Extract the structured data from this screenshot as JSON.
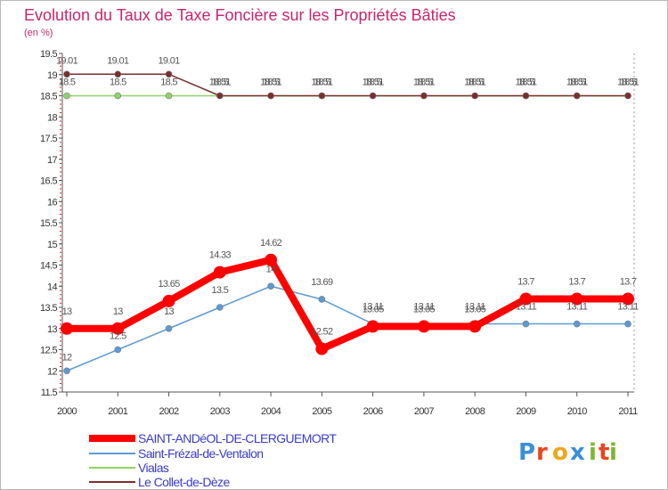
{
  "chart_data": {
    "type": "line",
    "title": "Evolution du Taux de Taxe Foncière sur les Propriétés Bâties",
    "subtitle": "(en %)",
    "xlabel": "",
    "ylabel": "(en %)",
    "categories": [
      "2000",
      "2001",
      "2002",
      "2003",
      "2004",
      "2005",
      "2006",
      "2007",
      "2008",
      "2009",
      "2010",
      "2011"
    ],
    "ylim": [
      11.5,
      19.5
    ],
    "yticks": [
      "11.5",
      "12",
      "12.5",
      "13",
      "13.5",
      "14",
      "14.5",
      "15",
      "15.5",
      "16",
      "16.5",
      "17",
      "17.5",
      "18",
      "18.5",
      "19",
      "19.5"
    ],
    "series": [
      {
        "name": "SAINT-ANDéOL-DE-CLERGUEMORT",
        "color": "#ff0000",
        "values": [
          13,
          13,
          13.65,
          14.33,
          14.62,
          12.52,
          13.05,
          13.05,
          13.05,
          13.7,
          13.7,
          13.7
        ],
        "labels": [
          "13",
          "13",
          "13.65",
          "14.33",
          "14.62",
          "12.52",
          "13.05",
          "13.05",
          "13.05",
          "13.7",
          "13.7",
          "13.7"
        ]
      },
      {
        "name": "Saint-Frézal-de-Ventalon",
        "color": "#5b9bd5",
        "values": [
          12,
          12.5,
          13,
          13.5,
          14,
          13.69,
          13.11,
          13.11,
          13.11,
          13.11,
          13.11,
          13.11
        ],
        "labels": [
          "12",
          "12.5",
          "13",
          "13.5",
          "14",
          "13.69",
          "13.11",
          "13.11",
          "13.11",
          "13.11",
          "13.11",
          "13.11"
        ]
      },
      {
        "name": "Vialas",
        "color": "#8fd16a",
        "values": [
          18.5,
          18.5,
          18.5,
          18.5,
          18.5,
          18.5,
          18.5,
          18.5,
          18.5,
          18.5,
          18.5,
          18.5
        ],
        "labels": [
          "18.5",
          "18.5",
          "18.5",
          "18.5",
          "18.5",
          "18.5",
          "18.5",
          "18.5",
          "18.5",
          "18.5",
          "18.5",
          "18.5"
        ]
      },
      {
        "name": "Le Collet-de-Dèze",
        "color": "#7b2e2e",
        "values": [
          19.01,
          19.01,
          19.01,
          18.5,
          18.5,
          18.5,
          18.5,
          18.5,
          18.5,
          18.5,
          18.5,
          18.5
        ],
        "labels": [
          "19.01",
          "19.01",
          "19.01",
          "18.51",
          "18.51",
          "18.51",
          "18.51",
          "18.51",
          "18.51",
          "18.51",
          "18.51",
          "18.51"
        ]
      }
    ],
    "legend_position": "bottom-left",
    "grid": false
  },
  "logo": {
    "letters": [
      "P",
      "r",
      "o",
      "x",
      "i",
      "t",
      "i"
    ],
    "colors": [
      "#3a8fd8",
      "#e8451e",
      "#f2a51a",
      "#3a8fd8",
      "#7ab82e",
      "#e8451e",
      "#7ab82e"
    ]
  }
}
